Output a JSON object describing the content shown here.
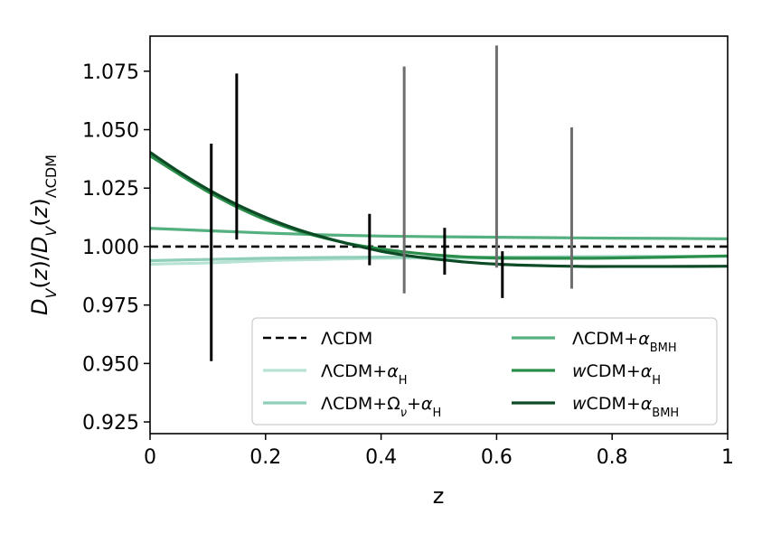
{
  "chart_data": {
    "type": "line",
    "xlabel": "z",
    "ylabel_html": "D_V(z)/D_V(z)_ΛCDM",
    "xlim": [
      0,
      1
    ],
    "ylim": [
      0.92,
      1.09
    ],
    "xticks": [
      0,
      0.2,
      0.4,
      0.6,
      0.8,
      1
    ],
    "xtick_labels": [
      "0",
      "0.2",
      "0.4",
      "0.6",
      "0.8",
      "1"
    ],
    "yticks": [
      0.925,
      0.95,
      0.975,
      1.0,
      1.025,
      1.05,
      1.075
    ],
    "ytick_labels": [
      "0.925",
      "0.950",
      "0.975",
      "1.000",
      "1.025",
      "1.050",
      "1.075"
    ],
    "legend_location": "lower-right",
    "series": [
      {
        "key": "lcdm",
        "name": "ΛCDM",
        "color": "#000000",
        "dashed": true,
        "x": [
          0,
          1
        ],
        "y": [
          1.0,
          1.0
        ]
      },
      {
        "key": "lcdm_ah",
        "name": "ΛCDM+α_H",
        "color": "#b8e3d3",
        "x": [
          0,
          0.1,
          0.2,
          0.3,
          0.4,
          0.5,
          0.6,
          0.7,
          0.8,
          0.9,
          1.0
        ],
        "y": [
          0.9925,
          0.993,
          0.994,
          0.9945,
          0.995,
          0.995,
          0.995,
          0.9953,
          0.9955,
          0.9957,
          0.996
        ]
      },
      {
        "key": "lcdm_nu_ah",
        "name": "ΛCDM+Ω_ν+α_H",
        "color": "#8fcfb8",
        "x": [
          0,
          0.1,
          0.2,
          0.3,
          0.4,
          0.5,
          0.6,
          0.7,
          0.8,
          0.9,
          1.0
        ],
        "y": [
          0.994,
          0.9945,
          0.995,
          0.9953,
          0.9955,
          0.9955,
          0.9955,
          0.9956,
          0.9957,
          0.9958,
          0.9958
        ]
      },
      {
        "key": "lcdm_abmh",
        "name": "ΛCDM+α_BMH",
        "color": "#55b07f",
        "x": [
          0,
          0.1,
          0.2,
          0.3,
          0.4,
          0.5,
          0.6,
          0.7,
          0.8,
          0.9,
          1.0
        ],
        "y": [
          1.0078,
          1.0068,
          1.0058,
          1.005,
          1.0045,
          1.0042,
          1.004,
          1.0038,
          1.0036,
          1.0035,
          1.0033
        ]
      },
      {
        "key": "wcdm_ah",
        "name": "wCDM+α_H",
        "color": "#2a8e4a",
        "x": [
          0,
          0.05,
          0.1,
          0.15,
          0.2,
          0.25,
          0.3,
          0.35,
          0.4,
          0.45,
          0.5,
          0.55,
          0.6,
          0.65,
          0.7,
          0.75,
          0.8,
          0.9,
          1.0
        ],
        "y": [
          1.0388,
          1.031,
          1.0235,
          1.017,
          1.0115,
          1.0072,
          1.0038,
          1.001,
          0.999,
          0.9975,
          0.9963,
          0.9955,
          0.9951,
          0.995,
          0.995,
          0.995,
          0.9951,
          0.9955,
          0.996
        ]
      },
      {
        "key": "wcdm_abmh",
        "name": "wCDM+α_BMH",
        "color": "#0d4a26",
        "x": [
          0,
          0.05,
          0.1,
          0.15,
          0.2,
          0.25,
          0.3,
          0.35,
          0.4,
          0.45,
          0.5,
          0.55,
          0.6,
          0.65,
          0.7,
          0.75,
          0.8,
          0.9,
          1.0
        ],
        "y": [
          1.0403,
          1.032,
          1.0245,
          1.018,
          1.0125,
          1.0078,
          1.004,
          1.0008,
          0.998,
          0.996,
          0.9945,
          0.9933,
          0.9925,
          0.992,
          0.9917,
          0.9915,
          0.9915,
          0.9915,
          0.9916
        ]
      }
    ],
    "error_bars": [
      {
        "x": 0.106,
        "low": 0.951,
        "high": 1.044,
        "color": "#000000"
      },
      {
        "x": 0.15,
        "low": 1.003,
        "high": 1.074,
        "color": "#000000"
      },
      {
        "x": 0.38,
        "low": 0.992,
        "high": 1.014,
        "color": "#000000"
      },
      {
        "x": 0.51,
        "low": 0.988,
        "high": 1.008,
        "color": "#000000"
      },
      {
        "x": 0.61,
        "low": 0.978,
        "high": 0.998,
        "color": "#000000"
      },
      {
        "x": 0.44,
        "low": 0.98,
        "high": 1.077,
        "color": "#6e6e6e"
      },
      {
        "x": 0.6,
        "low": 0.991,
        "high": 1.086,
        "color": "#6e6e6e"
      },
      {
        "x": 0.73,
        "low": 0.982,
        "high": 1.051,
        "color": "#6e6e6e"
      }
    ]
  }
}
